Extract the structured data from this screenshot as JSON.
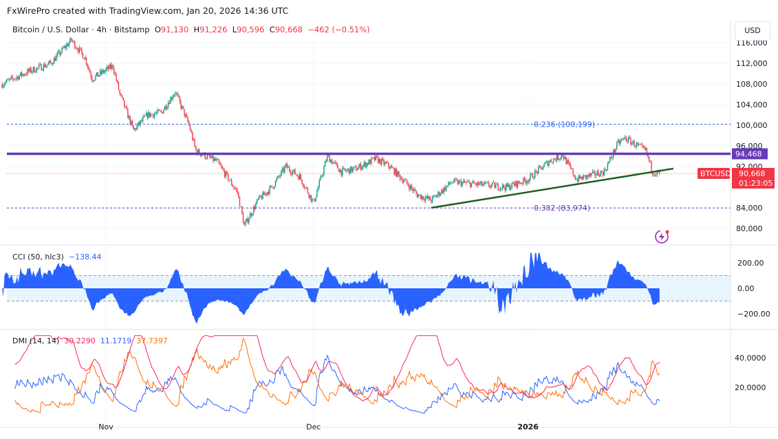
{
  "credit": "FxWirePro created with TradingView.com, Jan 20, 2026 14:36 UTC",
  "legend": {
    "symbol": "Bitcoin / U.S. Dollar · 4h · Bitstamp",
    "o_label": "O",
    "open": "91,130",
    "h_label": "H",
    "high": "91,226",
    "l_label": "L",
    "low": "90,596",
    "c_label": "C",
    "close": "90,668",
    "change": "−462 (−0.51%)"
  },
  "currency": "USD",
  "colors": {
    "up": "#089981",
    "down": "#f23645",
    "resistance": "#673ab7",
    "trend": "#1b5e20",
    "cci": "#2962ff",
    "adx": "#f7245a",
    "plus_di": "#2962ff",
    "minus_di": "#ff6d00"
  },
  "chart_data": [
    {
      "type": "candlestick",
      "interval": "4h",
      "approx_close_path": [
        [
          "2025-10-17",
          108000
        ],
        [
          "2025-10-21",
          110500
        ],
        [
          "2025-10-24",
          112000
        ],
        [
          "2025-10-27",
          116500
        ],
        [
          "2025-10-29",
          113000
        ],
        [
          "2025-10-30",
          109000
        ],
        [
          "2025-11-02",
          111500
        ],
        [
          "2025-11-03",
          106000
        ],
        [
          "2025-11-05",
          99000
        ],
        [
          "2025-11-07",
          102000
        ],
        [
          "2025-11-09",
          102500
        ],
        [
          "2025-11-11",
          106500
        ],
        [
          "2025-11-13",
          100000
        ],
        [
          "2025-11-14",
          95000
        ],
        [
          "2025-11-17",
          93000
        ],
        [
          "2025-11-20",
          87000
        ],
        [
          "2025-11-21",
          80500
        ],
        [
          "2025-11-23",
          85500
        ],
        [
          "2025-11-25",
          88000
        ],
        [
          "2025-11-27",
          92000
        ],
        [
          "2025-11-29",
          90000
        ],
        [
          "2025-12-01",
          85000
        ],
        [
          "2025-12-03",
          94000
        ],
        [
          "2025-12-05",
          91000
        ],
        [
          "2025-12-07",
          91500
        ],
        [
          "2025-12-10",
          93500
        ],
        [
          "2025-12-12",
          92000
        ],
        [
          "2025-12-15",
          88000
        ],
        [
          "2025-12-16",
          86500
        ],
        [
          "2025-12-18",
          85500
        ],
        [
          "2025-12-21",
          89000
        ],
        [
          "2025-12-25",
          88500
        ],
        [
          "2025-12-29",
          88000
        ],
        [
          "2026-01-01",
          89500
        ],
        [
          "2026-01-04",
          93000
        ],
        [
          "2026-01-06",
          94200
        ],
        [
          "2026-01-08",
          89500
        ],
        [
          "2026-01-12",
          91000
        ],
        [
          "2026-01-14",
          96500
        ],
        [
          "2026-01-15",
          97500
        ],
        [
          "2026-01-18",
          95000
        ],
        [
          "2026-01-19",
          91000
        ],
        [
          "2026-01-20",
          90668
        ]
      ],
      "y_ticks": [
        "116,000",
        "112,000",
        "108,000",
        "104,000",
        "100,000",
        "96,000",
        "92,000",
        "84,000",
        "80,000"
      ],
      "y_tick_values": [
        116000,
        112000,
        108000,
        104000,
        100000,
        96000,
        92000,
        84000,
        80000
      ],
      "x_ticks": [
        {
          "label": "Nov",
          "date": "2025-11-01"
        },
        {
          "label": "Dec",
          "date": "2025-12-01"
        },
        {
          "label": "2026",
          "date": "2026-01-01"
        }
      ],
      "levels": [
        {
          "label": "0.236 (100,199)",
          "value": 100199,
          "color": "#2962ff",
          "style": "dashed"
        },
        {
          "label": "0.382 (83,974)",
          "value": 83974,
          "color": "#673ab7",
          "style": "dashed"
        },
        {
          "label": "94,468",
          "value": 94468,
          "color": "#673ab7",
          "style": "solid"
        }
      ],
      "trendline": {
        "from": [
          "2025-12-18",
          84000
        ],
        "to": [
          "2026-01-22",
          91600
        ]
      },
      "last_price": {
        "symbol": "BTCUSD",
        "value": 90668,
        "label": "90,668",
        "countdown": "01:23:05"
      }
    },
    {
      "type": "area",
      "name": "CCI (50, hlc3)",
      "last_value": "−138.44",
      "y_ticks": [
        "200.00",
        "0.00",
        "−200.00"
      ],
      "y_tick_values": [
        200,
        0,
        -200
      ],
      "bands": [
        100,
        -100
      ]
    },
    {
      "type": "line",
      "name": "DMI (14, 14)",
      "values_text": [
        "30.2290",
        "11.1719",
        "37.7397"
      ],
      "y_ticks": [
        "40.0000",
        "20.0000"
      ],
      "y_tick_values": [
        40,
        20
      ]
    }
  ]
}
